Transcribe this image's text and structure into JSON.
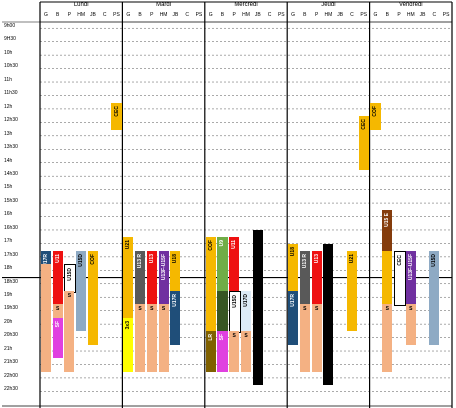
{
  "days": [
    "Lundi",
    "Mardi",
    "Mercredi",
    "Jeudi",
    "Vendredi"
  ],
  "columns": [
    "G",
    "B",
    "P",
    "HM",
    "JB",
    "C",
    "PS"
  ],
  "times": [
    "9h00",
    "9H30",
    "10h",
    "10h30",
    "11h",
    "11h30",
    "12h",
    "12h30",
    "13h",
    "13h30",
    "14h",
    "14h30",
    "15h",
    "15h30",
    "16h",
    "16h30",
    "17h",
    "17h30",
    "18h",
    "18h30",
    "19h",
    "19h30",
    "20h",
    "20h30",
    "21h",
    "21h30",
    "22h00",
    "22h30"
  ],
  "colors": {
    "navy": "#1f4e79",
    "red": "#ee1111",
    "salmon": "#f4b183",
    "gold": "#f5b800",
    "gray": "#8eaac4",
    "purple": "#7030a0",
    "darkgray": "#595959",
    "green": "#70ad47",
    "darkgreen": "#375623",
    "olive": "#7f6000",
    "lightblue": "#ddebf7",
    "magenta": "#e040e0",
    "yellow": "#ffff00",
    "brown": "#843c0c",
    "black": "#000000",
    "white": "#ffffff"
  },
  "blocks": [
    {
      "day": 0,
      "col": 0,
      "start": 17.5,
      "end": 18,
      "color": "navy",
      "label": "U17R",
      "vertical": true
    },
    {
      "day": 0,
      "col": 0,
      "start": 18,
      "end": 22,
      "color": "salmon",
      "label": ""
    },
    {
      "day": 0,
      "col": 1,
      "start": 17.5,
      "end": 19.5,
      "color": "red",
      "label": "U11",
      "vertical": true
    },
    {
      "day": 0,
      "col": 1,
      "start": 19.5,
      "end": 21,
      "color": "salmon",
      "label": "S"
    },
    {
      "day": 0,
      "col": 1,
      "start": 20,
      "end": 21.5,
      "color": "magenta",
      "label": "SF",
      "vertical": true
    },
    {
      "day": 0,
      "col": 2,
      "start": 18,
      "end": 19,
      "color": "white",
      "label": "U15D",
      "vertical": true
    },
    {
      "day": 0,
      "col": 2,
      "start": 19,
      "end": 22,
      "color": "salmon",
      "label": "S"
    },
    {
      "day": 0,
      "col": 3,
      "start": 17.5,
      "end": 20.5,
      "color": "gray",
      "label": "U15D",
      "vertical": true
    },
    {
      "day": 0,
      "col": 4,
      "start": 17.5,
      "end": 21,
      "color": "gold",
      "label": "COF",
      "vertical": true
    },
    {
      "day": 0,
      "col": 6,
      "start": 12,
      "end": 13,
      "color": "gold",
      "label": "CEC",
      "vertical": true
    },
    {
      "day": 1,
      "col": 0,
      "start": 17,
      "end": 20,
      "color": "gold",
      "label": "U21",
      "vertical": true
    },
    {
      "day": 1,
      "col": 0,
      "start": 20,
      "end": 22,
      "color": "yellow",
      "label": "3x3",
      "vertical": true
    },
    {
      "day": 1,
      "col": 1,
      "start": 17.5,
      "end": 19.5,
      "color": "darkgray",
      "label": "U13 R",
      "vertical": true
    },
    {
      "day": 1,
      "col": 1,
      "start": 19.5,
      "end": 22,
      "color": "salmon",
      "label": "S"
    },
    {
      "day": 1,
      "col": 2,
      "start": 17.5,
      "end": 19.5,
      "color": "red",
      "label": "U13",
      "vertical": true
    },
    {
      "day": 1,
      "col": 2,
      "start": 19.5,
      "end": 22,
      "color": "salmon",
      "label": "S"
    },
    {
      "day": 1,
      "col": 3,
      "start": 17.5,
      "end": 19.5,
      "color": "purple",
      "label": "U13F-U15F",
      "vertical": true
    },
    {
      "day": 1,
      "col": 3,
      "start": 19.5,
      "end": 22,
      "color": "salmon",
      "label": "S"
    },
    {
      "day": 1,
      "col": 4,
      "start": 17.5,
      "end": 19,
      "color": "gold",
      "label": "U18",
      "vertical": true
    },
    {
      "day": 1,
      "col": 4,
      "start": 19,
      "end": 21,
      "color": "navy",
      "label": "U17R",
      "vertical": true
    },
    {
      "day": 2,
      "col": 0,
      "start": 17,
      "end": 20.5,
      "color": "gold",
      "label": "COF",
      "vertical": true
    },
    {
      "day": 2,
      "col": 0,
      "start": 20.5,
      "end": 22,
      "color": "olive",
      "label": "LR",
      "vertical": true
    },
    {
      "day": 2,
      "col": 1,
      "start": 17,
      "end": 19,
      "color": "green",
      "label": "U9",
      "vertical": true
    },
    {
      "day": 2,
      "col": 1,
      "start": 19,
      "end": 21,
      "color": "darkgreen",
      "label": "",
      "vertical": true
    },
    {
      "day": 2,
      "col": 1,
      "start": 20.5,
      "end": 22,
      "color": "magenta",
      "label": "SF",
      "vertical": true
    },
    {
      "day": 2,
      "col": 2,
      "start": 17,
      "end": 19,
      "color": "red",
      "label": "U11",
      "vertical": true
    },
    {
      "day": 2,
      "col": 2,
      "start": 19,
      "end": 20.5,
      "color": "white",
      "label": "U15D",
      "vertical": true
    },
    {
      "day": 2,
      "col": 2,
      "start": 20.5,
      "end": 22,
      "color": "salmon",
      "label": "S"
    },
    {
      "day": 2,
      "col": 3,
      "start": 19,
      "end": 20.5,
      "color": "lightblue",
      "label": "U17D",
      "vertical": true
    },
    {
      "day": 2,
      "col": 3,
      "start": 20.5,
      "end": 22,
      "color": "salmon",
      "label": "S"
    },
    {
      "day": 2,
      "col": 4,
      "start": 16.75,
      "end": 22.5,
      "color": "black",
      "label": ""
    },
    {
      "day": 3,
      "col": 0,
      "start": 17.25,
      "end": 19,
      "color": "gold",
      "label": "U18",
      "vertical": true
    },
    {
      "day": 3,
      "col": 0,
      "start": 19,
      "end": 21,
      "color": "navy",
      "label": "U17R",
      "vertical": true
    },
    {
      "day": 3,
      "col": 1,
      "start": 17.5,
      "end": 19.5,
      "color": "darkgray",
      "label": "U13 R",
      "vertical": true
    },
    {
      "day": 3,
      "col": 1,
      "start": 19.5,
      "end": 22,
      "color": "salmon",
      "label": "S"
    },
    {
      "day": 3,
      "col": 2,
      "start": 17.5,
      "end": 19.5,
      "color": "red",
      "label": "U13",
      "vertical": true
    },
    {
      "day": 3,
      "col": 2,
      "start": 19.5,
      "end": 22,
      "color": "salmon",
      "label": "S"
    },
    {
      "day": 3,
      "col": 3,
      "start": 17.25,
      "end": 22.5,
      "color": "black",
      "label": ""
    },
    {
      "day": 3,
      "col": 5,
      "start": 17.5,
      "end": 20.5,
      "color": "gold",
      "label": "U21",
      "vertical": true
    },
    {
      "day": 3,
      "col": 6,
      "start": 12.5,
      "end": 14.5,
      "color": "gold",
      "label": "CEC",
      "vertical": true
    },
    {
      "day": 4,
      "col": 0,
      "start": 12,
      "end": 13,
      "color": "gold",
      "label": "COF",
      "vertical": true
    },
    {
      "day": 4,
      "col": 1,
      "start": 16,
      "end": 17.5,
      "color": "brown",
      "label": "U15 E",
      "vertical": true
    },
    {
      "day": 4,
      "col": 1,
      "start": 17.5,
      "end": 19.5,
      "color": "gold",
      "label": "",
      "vertical": true
    },
    {
      "day": 4,
      "col": 1,
      "start": 19.5,
      "end": 22,
      "color": "salmon",
      "label": "S"
    },
    {
      "day": 4,
      "col": 2,
      "start": 17.5,
      "end": 19.5,
      "color": "white",
      "label": "CEC",
      "vertical": true
    },
    {
      "day": 4,
      "col": 3,
      "start": 17.5,
      "end": 19.5,
      "color": "purple",
      "label": "U13F-U15F",
      "vertical": true
    },
    {
      "day": 4,
      "col": 3,
      "start": 19.5,
      "end": 21,
      "color": "salmon",
      "label": "S"
    },
    {
      "day": 4,
      "col": 5,
      "start": 17.5,
      "end": 21,
      "color": "gray",
      "label": "U15D",
      "vertical": true
    }
  ]
}
